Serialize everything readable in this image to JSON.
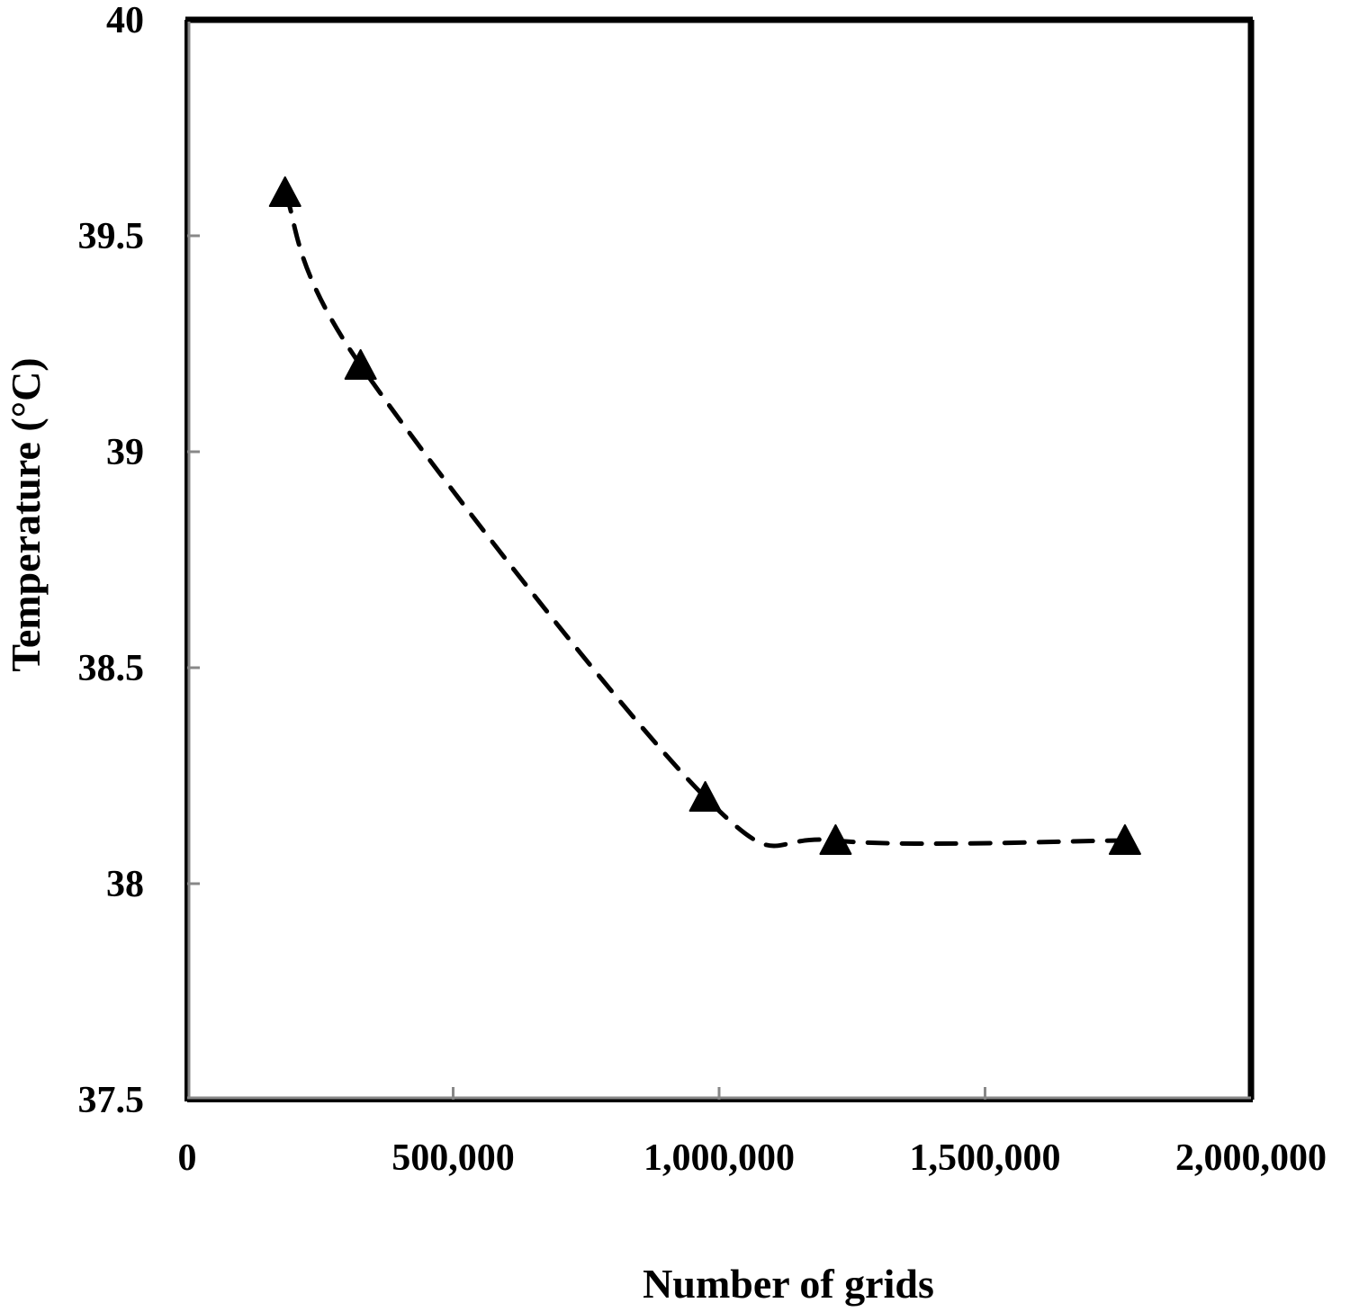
{
  "chart_data": {
    "type": "line",
    "title": "",
    "xlabel": "Number of grids",
    "ylabel": "Temperature (°C)",
    "xlim": [
      0,
      2000000
    ],
    "ylim": [
      37.5,
      40
    ],
    "x_ticks": [
      0,
      500000,
      1000000,
      1500000,
      2000000
    ],
    "x_tick_labels": [
      "0",
      "500,000",
      "1,000,000",
      "1,500,000",
      "2,000,000"
    ],
    "y_ticks": [
      37.5,
      38,
      38.5,
      39,
      39.5,
      40
    ],
    "y_tick_labels": [
      "37.5",
      "38",
      "38.5",
      "39",
      "39.5",
      "40"
    ],
    "grid": false,
    "series": [
      {
        "name": "Temperature",
        "marker": "triangle",
        "line_style": "dashed-smooth",
        "color": "#000000",
        "x": [
          184000,
          326000,
          974000,
          1219000,
          1763000
        ],
        "y": [
          39.6,
          39.2,
          38.2,
          38.1,
          38.1
        ]
      }
    ]
  }
}
